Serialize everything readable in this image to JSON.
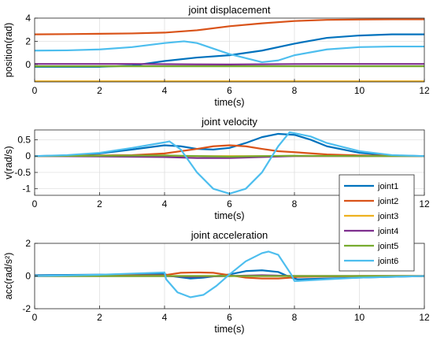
{
  "chart_data": [
    {
      "type": "line",
      "title": "joint displacement",
      "xlabel": "time(s)",
      "ylabel": "position(rad)",
      "xlim": [
        0,
        12
      ],
      "ylim": [
        -1.5,
        4
      ],
      "xticks": [
        0,
        2,
        4,
        6,
        8,
        10,
        12
      ],
      "yticks": [
        0,
        2,
        4
      ],
      "grid": true,
      "series": [
        {
          "name": "joint1",
          "x": [
            0,
            1,
            2,
            3,
            4,
            5,
            6,
            7,
            8,
            9,
            10,
            11,
            12
          ],
          "y": [
            -0.2,
            -0.2,
            -0.2,
            -0.1,
            0.3,
            0.6,
            0.8,
            1.2,
            1.8,
            2.3,
            2.5,
            2.6,
            2.6
          ]
        },
        {
          "name": "joint2",
          "x": [
            0,
            1,
            2,
            3,
            4,
            5,
            6,
            7,
            8,
            9,
            10,
            11,
            12
          ],
          "y": [
            2.6,
            2.62,
            2.65,
            2.68,
            2.75,
            2.95,
            3.3,
            3.55,
            3.75,
            3.85,
            3.88,
            3.9,
            3.9
          ]
        },
        {
          "name": "joint3",
          "x": [
            0,
            1,
            2,
            3,
            4,
            5,
            6,
            7,
            8,
            9,
            10,
            11,
            12
          ],
          "y": [
            -1.45,
            -1.45,
            -1.45,
            -1.45,
            -1.45,
            -1.45,
            -1.45,
            -1.45,
            -1.45,
            -1.45,
            -1.45,
            -1.45,
            -1.45
          ]
        },
        {
          "name": "joint4",
          "x": [
            0,
            1,
            2,
            3,
            4,
            5,
            6,
            7,
            8,
            9,
            10,
            11,
            12
          ],
          "y": [
            0.05,
            0.05,
            0.05,
            0.05,
            0.03,
            0.01,
            0.0,
            0.02,
            0.04,
            0.05,
            0.05,
            0.05,
            0.05
          ]
        },
        {
          "name": "joint5",
          "x": [
            0,
            1,
            2,
            3,
            4,
            5,
            6,
            7,
            8,
            9,
            10,
            11,
            12
          ],
          "y": [
            -0.15,
            -0.15,
            -0.15,
            -0.15,
            -0.15,
            -0.15,
            -0.15,
            -0.15,
            -0.15,
            -0.15,
            -0.15,
            -0.15,
            -0.15
          ]
        },
        {
          "name": "joint6",
          "x": [
            0,
            1,
            2,
            3,
            4,
            4.6,
            5,
            6,
            7,
            7.5,
            8,
            9,
            10,
            11,
            12
          ],
          "y": [
            1.2,
            1.22,
            1.3,
            1.5,
            1.85,
            2.0,
            1.85,
            0.9,
            0.2,
            0.35,
            0.8,
            1.3,
            1.5,
            1.55,
            1.55
          ]
        }
      ]
    },
    {
      "type": "line",
      "title": "joint velocity",
      "xlabel": "time(s)",
      "ylabel": "v(rad/s)",
      "xlim": [
        0,
        12
      ],
      "ylim": [
        -1.2,
        0.8
      ],
      "xticks": [
        0,
        2,
        4,
        6,
        8,
        10,
        12
      ],
      "yticks": [
        0.5,
        0,
        -0.5,
        -1
      ],
      "grid": true,
      "series": [
        {
          "name": "joint1",
          "x": [
            0,
            1,
            2,
            3,
            4,
            4.5,
            5,
            5.5,
            6,
            6.5,
            7,
            7.5,
            8,
            8.5,
            9,
            10,
            11,
            12
          ],
          "y": [
            0,
            0.02,
            0.08,
            0.2,
            0.33,
            0.3,
            0.22,
            0.2,
            0.25,
            0.4,
            0.58,
            0.68,
            0.65,
            0.5,
            0.3,
            0.1,
            0.02,
            0
          ]
        },
        {
          "name": "joint2",
          "x": [
            0,
            1,
            2,
            3,
            4,
            5,
            5.5,
            6,
            6.5,
            7,
            7.5,
            8,
            9,
            10,
            11,
            12
          ],
          "y": [
            0,
            0.01,
            0.02,
            0.03,
            0.08,
            0.22,
            0.3,
            0.33,
            0.3,
            0.22,
            0.15,
            0.12,
            0.05,
            0.02,
            0.01,
            0
          ]
        },
        {
          "name": "joint3",
          "x": [
            0,
            12
          ],
          "y": [
            0,
            0
          ]
        },
        {
          "name": "joint4",
          "x": [
            0,
            2,
            4,
            5,
            6,
            7,
            8,
            10,
            12
          ],
          "y": [
            0,
            -0.01,
            -0.03,
            -0.06,
            -0.06,
            -0.03,
            0.0,
            0.0,
            0
          ]
        },
        {
          "name": "joint5",
          "x": [
            0,
            2,
            4,
            5,
            6,
            7,
            8,
            10,
            12
          ],
          "y": [
            0,
            0.01,
            0.02,
            0.0,
            -0.02,
            0.0,
            0.01,
            0.0,
            0
          ]
        },
        {
          "name": "joint6",
          "x": [
            0,
            1,
            2,
            3,
            4,
            4.15,
            4.5,
            5,
            5.5,
            6,
            6.5,
            7,
            7.5,
            7.85,
            8.5,
            9,
            10,
            11,
            12
          ],
          "y": [
            0,
            0.03,
            0.1,
            0.25,
            0.42,
            0.45,
            0.2,
            -0.5,
            -1.0,
            -1.15,
            -1.0,
            -0.5,
            0.3,
            0.73,
            0.6,
            0.4,
            0.15,
            0.03,
            0
          ]
        }
      ]
    },
    {
      "type": "line",
      "title": "joint acceleration",
      "xlabel": "time(s)",
      "ylabel": "acc(rad/s²)",
      "xlim": [
        0,
        12
      ],
      "ylim": [
        -2,
        2
      ],
      "xticks": [
        0,
        2,
        4,
        6,
        8,
        10,
        12
      ],
      "yticks": [
        2,
        0,
        -2
      ],
      "grid": true,
      "series": [
        {
          "name": "joint1",
          "x": [
            0,
            4,
            4.2,
            4.8,
            5.2,
            6,
            6.5,
            7,
            7.5,
            7.9,
            8.1,
            10,
            12
          ],
          "y": [
            0.05,
            0.12,
            0.0,
            -0.15,
            -0.1,
            0.1,
            0.3,
            0.35,
            0.25,
            -0.1,
            -0.2,
            -0.1,
            0
          ]
        },
        {
          "name": "joint2",
          "x": [
            0,
            4,
            4.5,
            5,
            5.5,
            6,
            6.5,
            7,
            7.5,
            7.9,
            8.1,
            10,
            12
          ],
          "y": [
            0.0,
            0.05,
            0.2,
            0.22,
            0.2,
            0.05,
            -0.1,
            -0.15,
            -0.15,
            -0.1,
            -0.05,
            0.0,
            0
          ]
        },
        {
          "name": "joint3",
          "x": [
            0,
            12
          ],
          "y": [
            0,
            0
          ]
        },
        {
          "name": "joint4",
          "x": [
            0,
            4,
            4.8,
            6,
            7,
            8,
            10,
            12
          ],
          "y": [
            0,
            0,
            -0.05,
            0,
            0.05,
            0,
            0,
            0
          ]
        },
        {
          "name": "joint5",
          "x": [
            0,
            4,
            6,
            8,
            10,
            12
          ],
          "y": [
            0,
            0,
            0,
            0,
            0,
            0
          ]
        },
        {
          "name": "joint6",
          "x": [
            0,
            2,
            4,
            4.05,
            4.4,
            4.8,
            5.2,
            5.6,
            6,
            6.5,
            7,
            7.2,
            7.5,
            7.9,
            8.0,
            8.1,
            9,
            10,
            11,
            12
          ],
          "y": [
            0,
            0.08,
            0.22,
            -0.2,
            -1.0,
            -1.3,
            -1.15,
            -0.6,
            0.1,
            0.9,
            1.4,
            1.5,
            1.3,
            0.1,
            -0.3,
            -0.3,
            -0.2,
            -0.1,
            -0.05,
            0
          ]
        }
      ]
    }
  ],
  "legend": {
    "placement": "inside-right",
    "entries": [
      {
        "label": "joint1",
        "color": "#0072BD"
      },
      {
        "label": "joint2",
        "color": "#D95319"
      },
      {
        "label": "joint3",
        "color": "#EDB120"
      },
      {
        "label": "joint4",
        "color": "#7E2F8E"
      },
      {
        "label": "joint5",
        "color": "#77AC30"
      },
      {
        "label": "joint6",
        "color": "#4DBEEE"
      }
    ]
  }
}
